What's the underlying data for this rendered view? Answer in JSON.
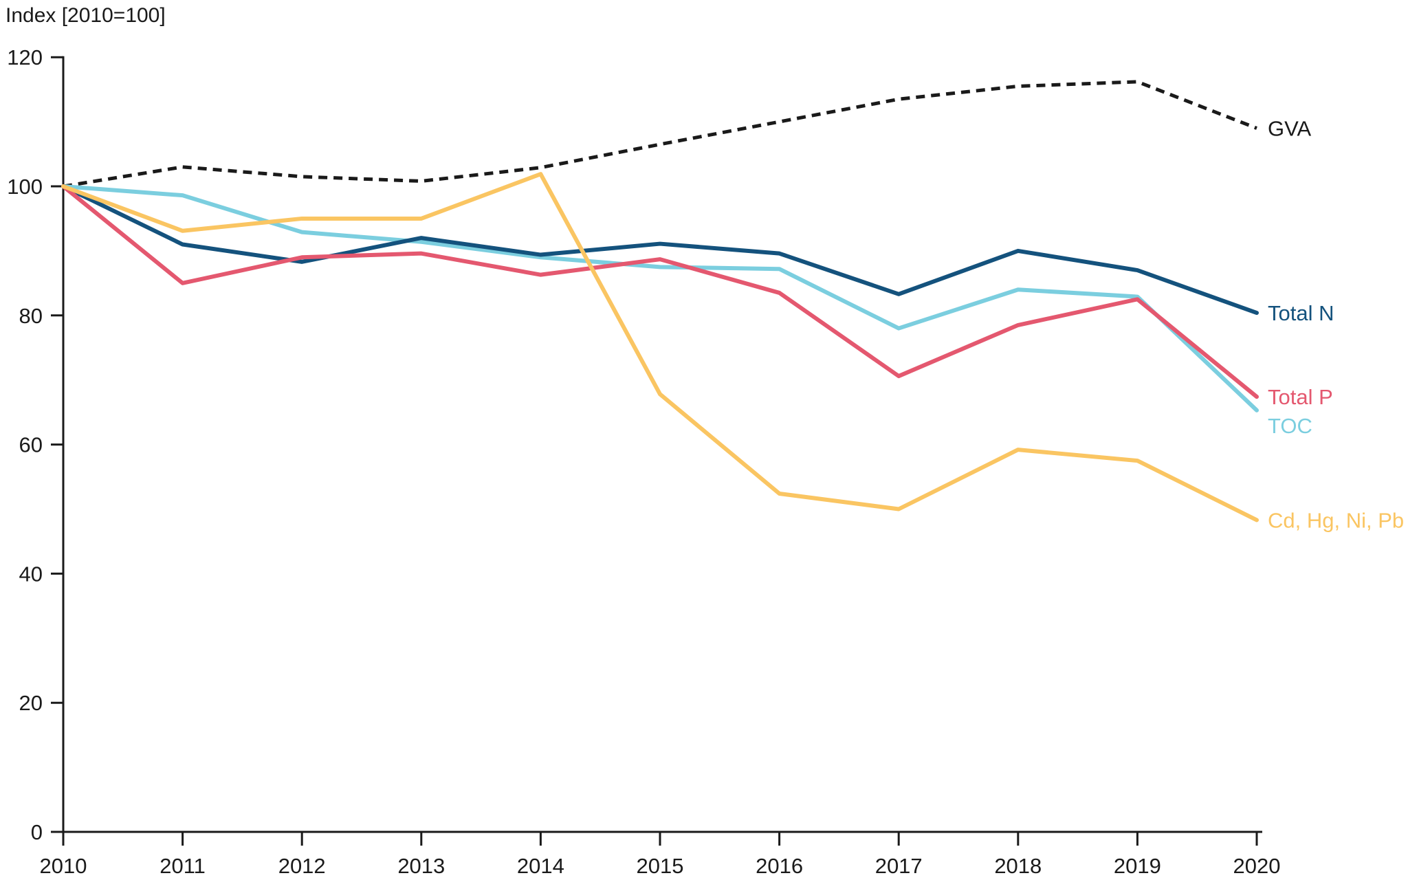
{
  "chart_data": {
    "type": "line",
    "title": "Index [2010=100]",
    "xlabel": "",
    "ylabel": "Index [2010=100]",
    "x": [
      2010,
      2011,
      2012,
      2013,
      2014,
      2015,
      2016,
      2017,
      2018,
      2019,
      2020
    ],
    "x_tick_labels": [
      "2010",
      "2011",
      "2012",
      "2013",
      "2014",
      "2015",
      "2016",
      "2017",
      "2018",
      "2019",
      "2020"
    ],
    "y_ticks": [
      0,
      20,
      40,
      60,
      80,
      100,
      120
    ],
    "ylim": [
      0,
      120
    ],
    "grid": false,
    "legend_position": "right-end-labels",
    "axis_color": "#1a1a1a",
    "series": [
      {
        "name": "GVA",
        "color": "#1a1a1a",
        "style": "dashed",
        "label_dy": 0,
        "values": [
          100,
          103,
          101.5,
          100.8,
          102.9,
          106.5,
          110,
          113.5,
          115.5,
          116.2,
          109
        ]
      },
      {
        "name": "TOC",
        "color": "#7bcedf",
        "style": "solid",
        "label_dy": 22,
        "values": [
          100,
          98.6,
          92.9,
          91.4,
          89,
          87.5,
          87.2,
          78,
          84,
          82.9,
          65.3
        ]
      },
      {
        "name": "Total N",
        "color": "#14527d",
        "style": "solid",
        "label_dy": 0,
        "values": [
          100,
          91,
          88.3,
          92,
          89.4,
          91.1,
          89.6,
          83.3,
          90,
          87,
          80.4
        ]
      },
      {
        "name": "Total P",
        "color": "#e4586f",
        "style": "solid",
        "label_dy": 0,
        "values": [
          100,
          85,
          89,
          89.6,
          86.3,
          88.7,
          83.5,
          70.6,
          78.5,
          82.5,
          67.4
        ]
      },
      {
        "name": "Cd, Hg, Ni, Pb",
        "color": "#fac562",
        "style": "solid",
        "label_dy": 0,
        "values": [
          100,
          93.1,
          95,
          95,
          101.9,
          67.8,
          52.4,
          50,
          59.2,
          57.5,
          48.3
        ]
      }
    ]
  }
}
